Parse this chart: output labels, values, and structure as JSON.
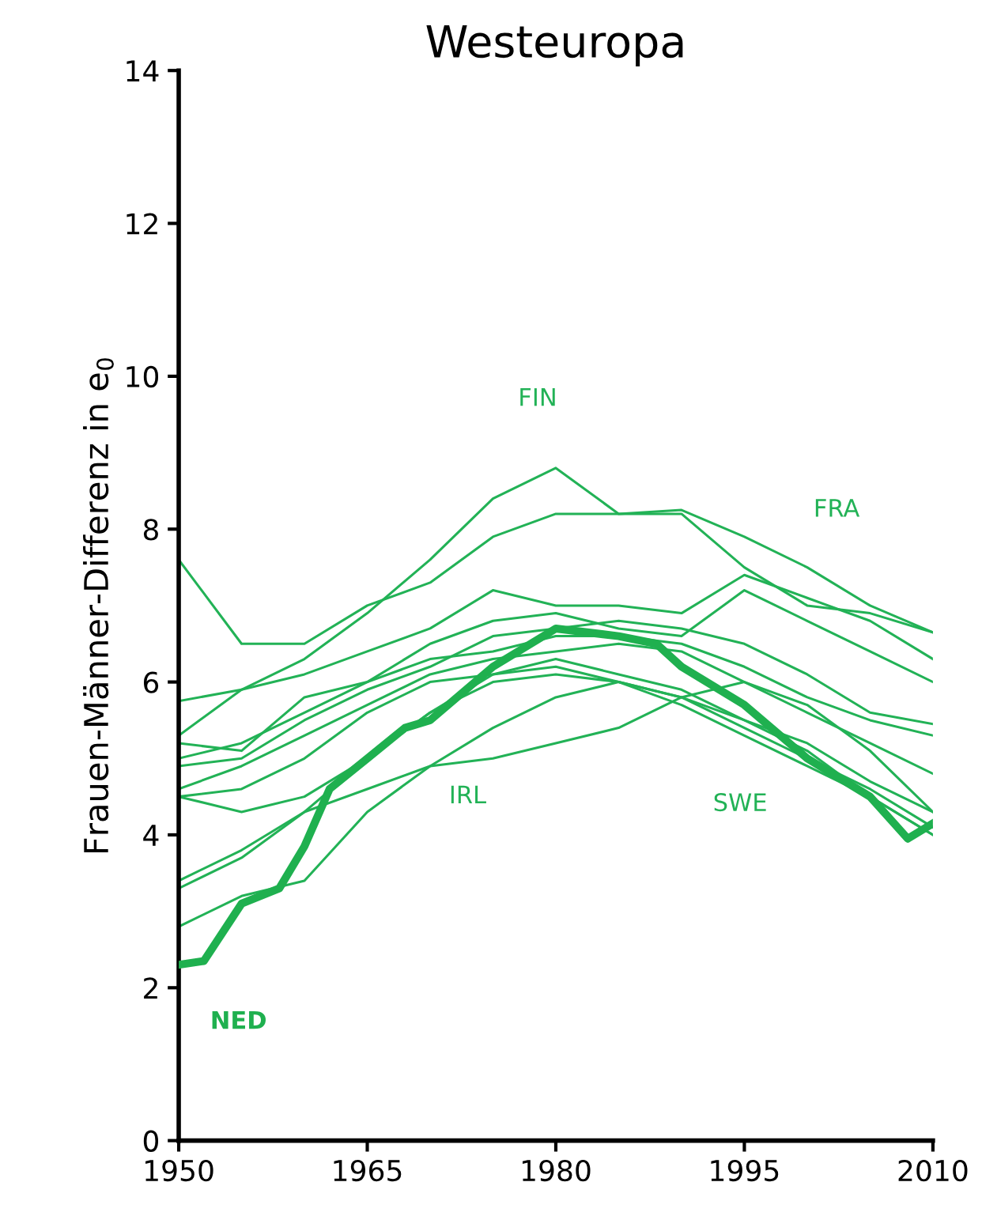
{
  "chart_data": {
    "type": "line",
    "title": "Westeuropa",
    "ylabel": "Frauen-Männer-Differenz in e$_{0}$",
    "x": [
      1950,
      1955,
      1960,
      1965,
      1970,
      1975,
      1980,
      1985,
      1990,
      1995,
      2000,
      2005,
      2010
    ],
    "xlim": [
      1950,
      2010
    ],
    "xticks": [
      1950,
      1965,
      1980,
      1995,
      2010
    ],
    "ylim": [
      0,
      14
    ],
    "yticks": [
      0,
      2,
      4,
      6,
      8,
      10,
      12,
      14
    ],
    "grid": false,
    "legend": false,
    "marker": "none",
    "line_style": "solid",
    "series": [
      {
        "name": "FIN",
        "color": "#22b256",
        "values": [
          5.75,
          5.9,
          6.3,
          6.9,
          7.6,
          8.4,
          8.8,
          8.2,
          8.2,
          7.5,
          7.0,
          6.9,
          6.65
        ]
      },
      {
        "name": "FRA",
        "color": "#22b256",
        "values": [
          7.6,
          6.5,
          6.5,
          7.0,
          7.3,
          7.9,
          8.2,
          8.2,
          8.25,
          7.9,
          7.5,
          7.0,
          6.65
        ]
      },
      {
        "color": "#22b256",
        "values": [
          5.3,
          5.9,
          6.1,
          6.4,
          6.7,
          7.2,
          7.0,
          7.0,
          6.9,
          7.4,
          7.1,
          6.8,
          6.3
        ]
      },
      {
        "color": "#22b256",
        "values": [
          5.0,
          5.2,
          5.6,
          6.0,
          6.5,
          6.8,
          6.9,
          6.7,
          6.6,
          7.2,
          6.8,
          6.4,
          6.0
        ]
      },
      {
        "color": "#22b256",
        "values": [
          4.9,
          5.0,
          5.5,
          5.9,
          6.2,
          6.6,
          6.7,
          6.8,
          6.7,
          6.5,
          6.1,
          5.6,
          5.45
        ]
      },
      {
        "color": "#22b256",
        "values": [
          5.2,
          5.1,
          5.8,
          6.0,
          6.3,
          6.4,
          6.6,
          6.6,
          6.5,
          6.2,
          5.8,
          5.5,
          5.3
        ]
      },
      {
        "color": "#22b256",
        "values": [
          4.6,
          4.9,
          5.3,
          5.7,
          6.1,
          6.3,
          6.4,
          6.5,
          6.4,
          6.0,
          5.6,
          5.2,
          4.8
        ]
      },
      {
        "color": "#22b256",
        "values": [
          4.5,
          4.6,
          5.0,
          5.6,
          6.0,
          6.1,
          6.2,
          6.0,
          5.8,
          5.5,
          5.2,
          4.7,
          4.3
        ]
      },
      {
        "name": "SWE",
        "color": "#22b256",
        "values": [
          4.5,
          4.3,
          4.5,
          5.0,
          5.6,
          6.0,
          6.1,
          6.0,
          5.8,
          5.4,
          5.0,
          4.6,
          4.1
        ]
      },
      {
        "name": "IRL",
        "color": "#22b256",
        "values": [
          3.4,
          3.8,
          4.3,
          4.6,
          4.9,
          5.0,
          5.2,
          5.4,
          5.8,
          6.0,
          5.7,
          5.1,
          4.3
        ]
      },
      {
        "color": "#22b256",
        "values": [
          3.3,
          3.7,
          4.3,
          5.0,
          5.6,
          6.1,
          6.3,
          6.1,
          5.9,
          5.5,
          5.1,
          4.5,
          4.0
        ]
      },
      {
        "color": "#22b256",
        "values": [
          2.8,
          3.2,
          3.4,
          4.3,
          4.9,
          5.4,
          5.8,
          6.0,
          5.7,
          5.3,
          4.9,
          4.5,
          4.0
        ]
      },
      {
        "name": "NED",
        "color": "#1fb04f",
        "x": [
          1950,
          1952,
          1955,
          1958,
          1960,
          1962,
          1965,
          1968,
          1970,
          1975,
          1980,
          1985,
          1988,
          1990,
          1995,
          2000,
          2005,
          2008,
          2010
        ],
        "values": [
          2.3,
          2.35,
          3.1,
          3.3,
          3.85,
          4.6,
          5.0,
          5.4,
          5.5,
          6.2,
          6.7,
          6.6,
          6.5,
          6.2,
          5.7,
          5.0,
          4.5,
          3.95,
          4.15
        ]
      }
    ]
  }
}
